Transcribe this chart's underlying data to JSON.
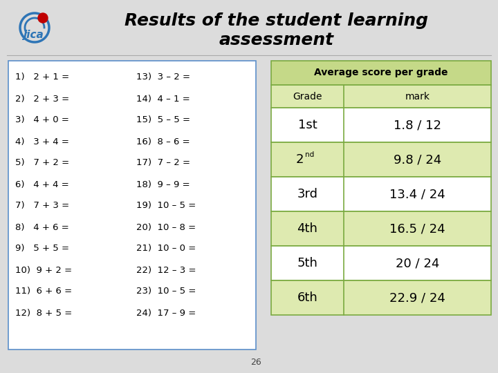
{
  "title_line1": "Results of the student learning",
  "title_line2": "assessment",
  "title_fontsize": 18,
  "title_color": "#000000",
  "bg_color": "#dcdcdc",
  "page_number": "26",
  "left_panel": {
    "border_color": "#5b8fc9",
    "bg_color": "#ffffff",
    "problems_col1": [
      "1)   2 + 1 =",
      "2)   2 + 3 =",
      "3)   4 + 0 =",
      "4)   3 + 4 =",
      "5)   7 + 2 =",
      "6)   4 + 4 =",
      "7)   7 + 3 =",
      "8)   4 + 6 =",
      "9)   5 + 5 =",
      "10)  9 + 2 =",
      "11)  6 + 6 =",
      "12)  8 + 5 ="
    ],
    "problems_col2": [
      "13)  3 – 2 =",
      "14)  4 – 1 =",
      "15)  5 – 5 =",
      "16)  8 – 6 =",
      "17)  7 – 2 =",
      "18)  9 – 9 =",
      "19)  10 – 5 =",
      "20)  10 – 8 =",
      "21)  10 – 0 =",
      "22)  12 – 3 =",
      "23)  10 – 5 =",
      "24)  17 – 9 ="
    ]
  },
  "right_panel": {
    "header": "Average score per grade",
    "header_bg": "#c5d988",
    "header_color": "#000000",
    "col1_header": "Grade",
    "col2_header": "mark",
    "row_bg_odd": "#ffffff",
    "row_bg_even": "#deeab0",
    "border_color": "#7aaa40",
    "grades": [
      "1st",
      "2nd",
      "3rd",
      "4th",
      "5th",
      "6th"
    ],
    "marks": [
      "1.8 / 12",
      "9.8 / 24",
      "13.4 / 24",
      "16.5 / 24",
      "20 / 24",
      "22.9 / 24"
    ]
  },
  "jica_logo_color_blue": "#2e75b6",
  "jica_logo_color_red": "#c00000"
}
